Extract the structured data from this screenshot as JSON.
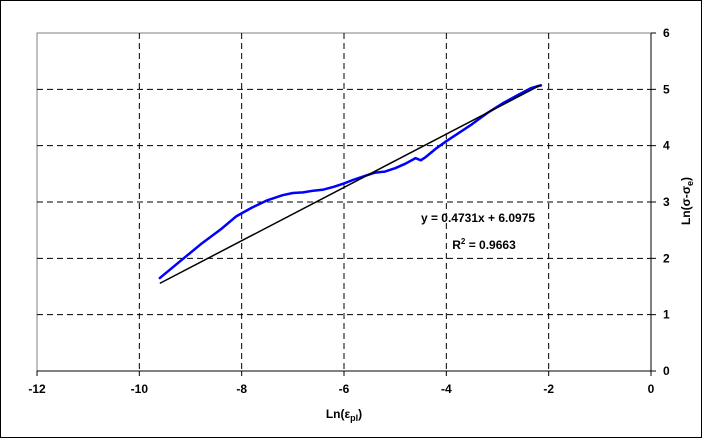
{
  "chart_data": {
    "type": "scatter",
    "xlabel_base": "Ln(ε",
    "xlabel_sub": "pl",
    "xlabel_close": ")",
    "ylabel_base": "Ln(σ-σ",
    "ylabel_sub": "e",
    "ylabel_close": ")",
    "xlim": [
      -12,
      0
    ],
    "ylim": [
      0,
      6
    ],
    "x_ticks": [
      "-12",
      "-10",
      "-8",
      "-6",
      "-4",
      "-2",
      "0"
    ],
    "y_ticks": [
      "0",
      "1",
      "2",
      "3",
      "4",
      "5",
      "6"
    ],
    "y_axis_side": "right",
    "grid": true,
    "series": [
      {
        "kind": "data",
        "color": "#0000ff",
        "x": [
          -9.6,
          -9.2,
          -8.8,
          -8.4,
          -8.1,
          -7.8,
          -7.5,
          -7.2,
          -7.0,
          -6.8,
          -6.6,
          -6.4,
          -6.2,
          -6.0,
          -5.8,
          -5.6,
          -5.4,
          -5.2,
          -5.0,
          -4.8,
          -4.6,
          -4.5,
          -4.4,
          -4.2,
          -4.0,
          -3.8,
          -3.5,
          -3.2,
          -2.9,
          -2.6,
          -2.35,
          -2.2,
          -2.15
        ],
        "y": [
          1.65,
          1.95,
          2.25,
          2.52,
          2.75,
          2.9,
          3.03,
          3.12,
          3.16,
          3.17,
          3.2,
          3.22,
          3.27,
          3.33,
          3.4,
          3.46,
          3.52,
          3.54,
          3.6,
          3.68,
          3.78,
          3.74,
          3.8,
          3.95,
          4.08,
          4.2,
          4.38,
          4.58,
          4.75,
          4.9,
          5.02,
          5.06,
          5.07
        ]
      },
      {
        "kind": "trendline",
        "color": "#000000",
        "slope": 0.4731,
        "intercept": 6.0975,
        "x_range": [
          -9.6,
          -2.15
        ]
      }
    ],
    "annotations": {
      "equation": "y = 0.4731x + 6.0975",
      "r2_prefix": "R",
      "r2_sup": "2",
      "r2_value": " = 0.9663"
    }
  }
}
